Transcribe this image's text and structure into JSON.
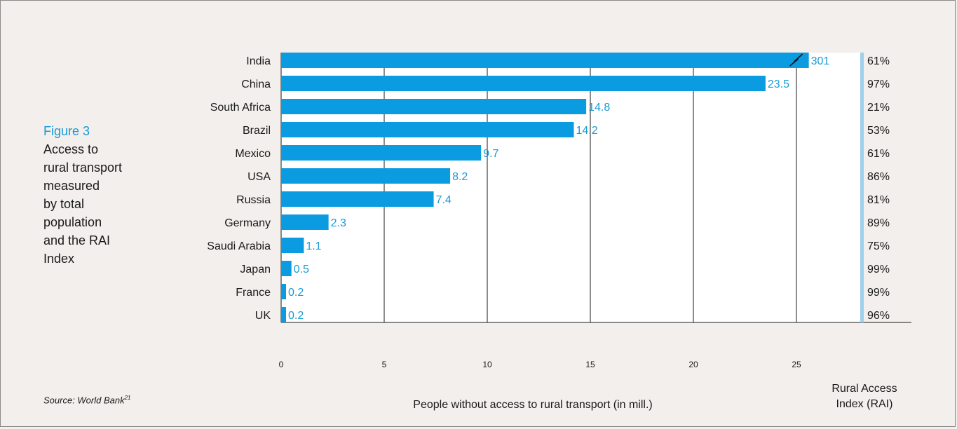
{
  "caption": {
    "figure_label": "Figure 3",
    "title_lines": [
      "Access to",
      "rural transport",
      "measured",
      "by total",
      "population",
      "and the RAI",
      "Index"
    ]
  },
  "source": {
    "text": "Source: World Bank",
    "footnote": "21"
  },
  "colors": {
    "bar": "#0a9be0",
    "label": "#1a9ad6",
    "rai_bar": "#9fd0ec",
    "grid": "#1a1a1a"
  },
  "chart_data": {
    "type": "bar",
    "orientation": "horizontal",
    "categories": [
      "India",
      "China",
      "South Africa",
      "Brazil",
      "Mexico",
      "USA",
      "Russia",
      "Germany",
      "Saudi Arabia",
      "Japan",
      "France",
      "UK"
    ],
    "values": [
      301,
      23.5,
      14.8,
      14.2,
      9.7,
      8.2,
      7.4,
      2.3,
      1.1,
      0.5,
      0.2,
      0.2
    ],
    "value_labels": [
      "301",
      "23.5",
      "14.8",
      "14.2",
      "9.7",
      "8.2",
      "7.4",
      "2.3",
      "1.1",
      "0.5",
      "0.2",
      "0.2"
    ],
    "broken_axis_categories": [
      "India"
    ],
    "rai": [
      "61%",
      "97%",
      "21%",
      "53%",
      "61%",
      "86%",
      "81%",
      "89%",
      "75%",
      "99%",
      "99%",
      "96%"
    ],
    "xlabel": "People without access to rural transport (in mill.)",
    "rai_label": [
      "Rural Access",
      "Index (RAI)"
    ],
    "xlim": [
      0,
      28
    ],
    "xticks": [
      0,
      5,
      10,
      15,
      20,
      25
    ],
    "grid": true
  }
}
